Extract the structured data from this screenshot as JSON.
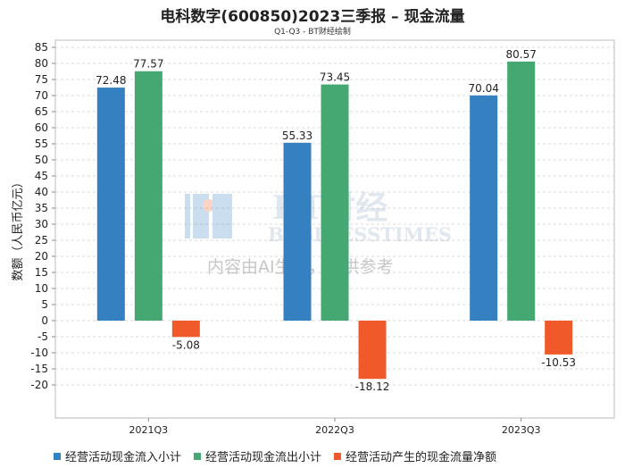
{
  "title": "电科数字(600850)2023三季报 – 现金流量",
  "subtitle": "Q1-Q3 - BT财经绘制",
  "watermark": {
    "brand": "BT财经",
    "brand_en": "BUSINESSTIMES",
    "notice": "内容由AI生成，仅供参考"
  },
  "chart_data": {
    "type": "bar",
    "categories": [
      "2021Q3",
      "2022Q3",
      "2023Q3"
    ],
    "ylabel": "数额（人民币亿元）",
    "ylim": [
      -22,
      85
    ],
    "yticks": [
      -20,
      -15,
      -10,
      -5,
      0,
      5,
      10,
      15,
      20,
      25,
      30,
      35,
      40,
      45,
      50,
      55,
      60,
      65,
      70,
      75,
      80,
      85
    ],
    "grid": true,
    "legend_position": "bottom",
    "series": [
      {
        "name": "经营活动现金流入小计",
        "color": "#3580c0",
        "values": [
          72.48,
          55.33,
          70.04
        ]
      },
      {
        "name": "经营活动现金流出小计",
        "color": "#45a872",
        "values": [
          77.57,
          73.45,
          80.57
        ]
      },
      {
        "name": "经营活动产生的现金流量净额",
        "color": "#f0592a",
        "values": [
          -5.08,
          -18.12,
          -10.53
        ]
      }
    ]
  }
}
